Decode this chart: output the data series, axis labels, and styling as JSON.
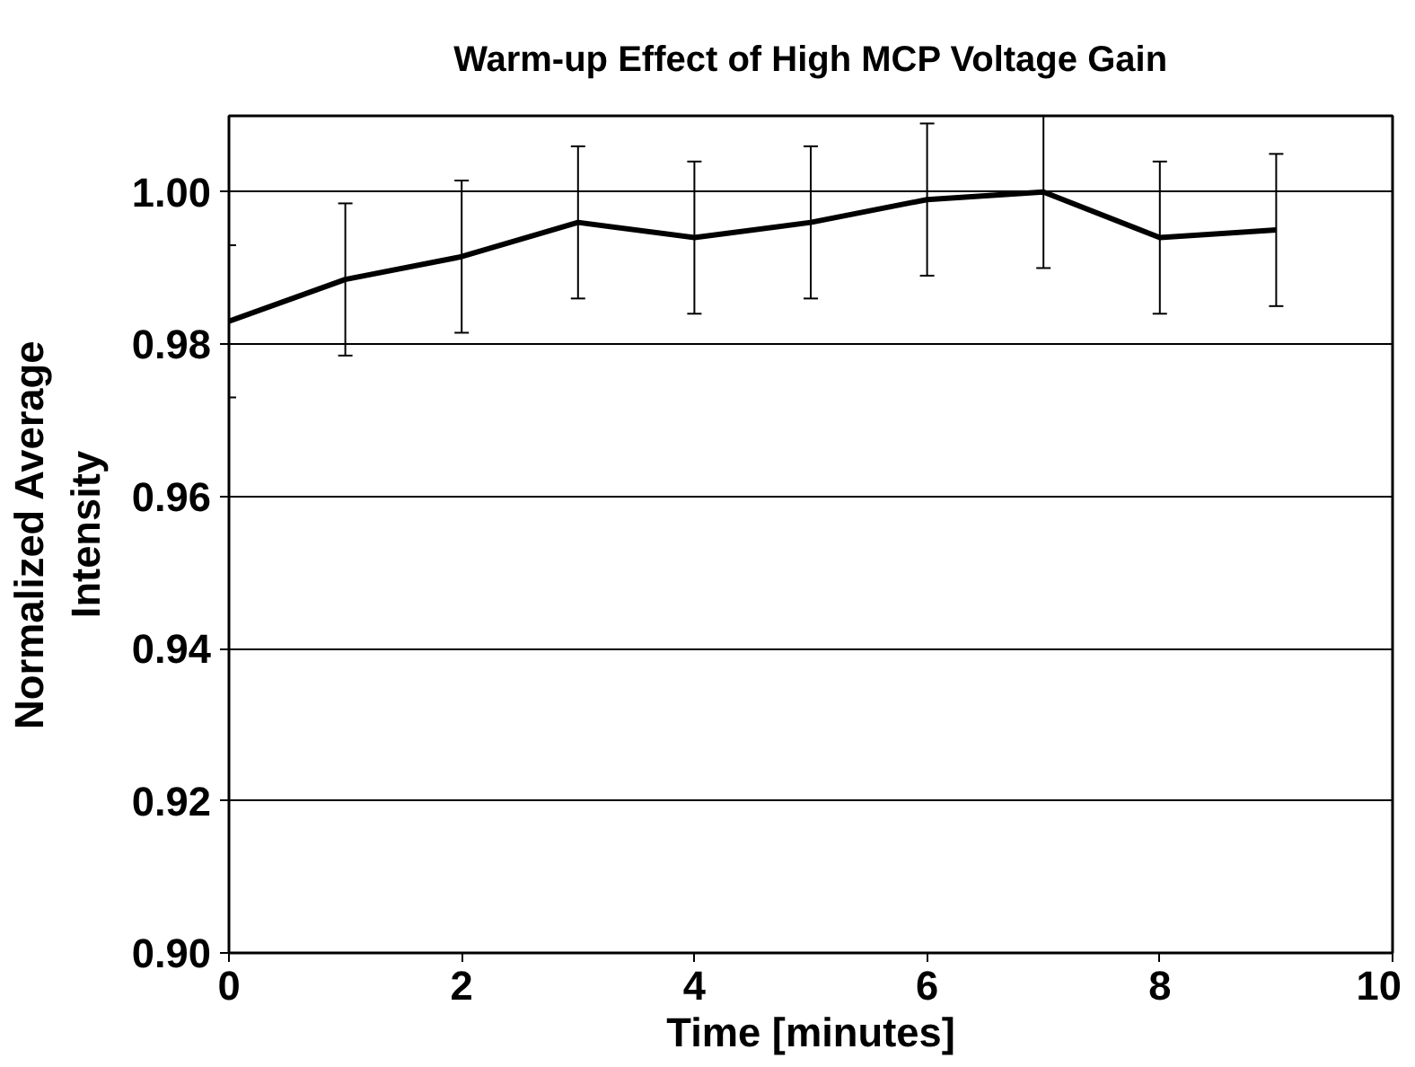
{
  "chart_data": {
    "type": "line",
    "title": "Warm-up Effect of High MCP Voltage Gain",
    "xlabel": "Time [minutes]",
    "ylabel": "Normalized Average Intensity",
    "x": [
      0,
      1,
      2,
      3,
      4,
      5,
      6,
      7,
      8,
      9
    ],
    "series": [
      {
        "color": "#000000",
        "values": [
          0.983,
          0.9885,
          0.9915,
          0.996,
          0.994,
          0.996,
          0.999,
          1.0,
          0.994,
          0.995
        ],
        "errors": [
          0.01,
          0.01,
          0.01,
          0.01,
          0.01,
          0.01,
          0.01,
          0.01,
          0.01,
          0.01
        ]
      }
    ],
    "xlim": [
      0,
      10
    ],
    "xticks": [
      0,
      2,
      4,
      6,
      8,
      10
    ],
    "ylim": [
      0.9,
      1.01
    ],
    "yticks": [
      {
        "value": 0.9,
        "label": "0.90"
      },
      {
        "value": 0.92,
        "label": "0.92"
      },
      {
        "value": 0.94,
        "label": "0.94"
      },
      {
        "value": 0.96,
        "label": "0.96"
      },
      {
        "value": 0.98,
        "label": "0.98"
      },
      {
        "value": 1.0,
        "label": "1.00"
      }
    ],
    "grid": "y",
    "marker": "none",
    "line_style": "solid"
  }
}
